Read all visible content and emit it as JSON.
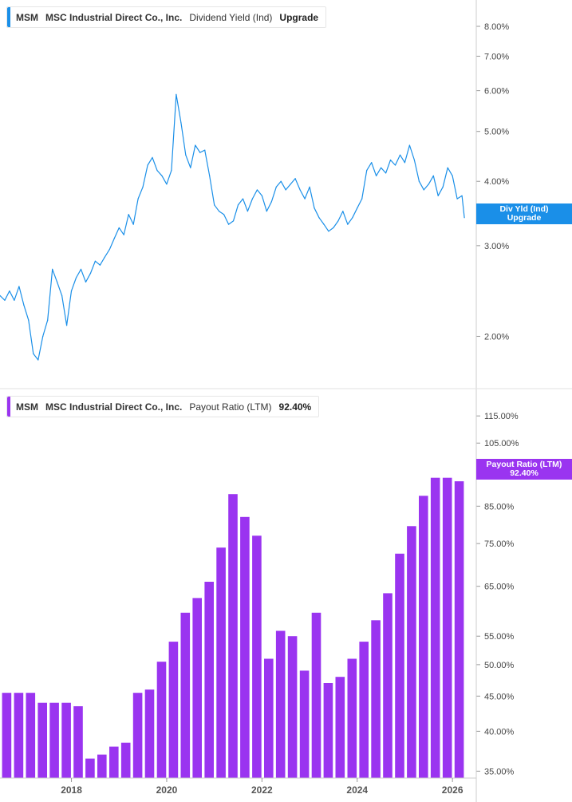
{
  "ticker": "MSM",
  "company": "MSC Industrial Direct Co., Inc.",
  "colors": {
    "yield": "#1a8fe8",
    "payout": "#9a34f0",
    "axis": "#cccccc",
    "gridline": "#e2e2e2"
  },
  "top_legend": {
    "ticker": "MSM",
    "company": "MSC Industrial Direct Co., Inc.",
    "metric": "Dividend Yield (Ind)",
    "value": "Upgrade"
  },
  "top_badge": {
    "line1": "Div Yld (Ind)",
    "line2": "Upgrade"
  },
  "bottom_legend": {
    "ticker": "MSM",
    "company": "MSC Industrial Direct Co., Inc.",
    "metric": "Payout Ratio (LTM)",
    "value": "92.40%"
  },
  "bottom_badge": {
    "line1": "Payout Ratio (LTM)",
    "line2": "92.40%"
  },
  "chart_data": [
    {
      "type": "line",
      "scale": "log",
      "series": [
        {
          "name": "Dividend Yield (Ind)",
          "x": [
            2016.5,
            2016.6,
            2016.7,
            2016.8,
            2016.9,
            2017.0,
            2017.1,
            2017.2,
            2017.3,
            2017.4,
            2017.5,
            2017.6,
            2017.7,
            2017.8,
            2017.9,
            2018.0,
            2018.1,
            2018.2,
            2018.3,
            2018.4,
            2018.5,
            2018.6,
            2018.7,
            2018.8,
            2018.9,
            2019.0,
            2019.1,
            2019.2,
            2019.3,
            2019.4,
            2019.5,
            2019.6,
            2019.7,
            2019.8,
            2019.9,
            2020.0,
            2020.1,
            2020.2,
            2020.3,
            2020.4,
            2020.5,
            2020.6,
            2020.7,
            2020.8,
            2020.9,
            2021.0,
            2021.1,
            2021.2,
            2021.3,
            2021.4,
            2021.5,
            2021.6,
            2021.7,
            2021.8,
            2021.9,
            2022.0,
            2022.1,
            2022.2,
            2022.3,
            2022.4,
            2022.5,
            2022.6,
            2022.7,
            2022.8,
            2022.9,
            2023.0,
            2023.1,
            2023.2,
            2023.3,
            2023.4,
            2023.5,
            2023.6,
            2023.7,
            2023.8,
            2023.9,
            2024.0,
            2024.1,
            2024.2,
            2024.3,
            2024.4,
            2024.5,
            2024.6,
            2024.7,
            2024.8,
            2024.9,
            2025.0,
            2025.1,
            2025.2,
            2025.3,
            2025.4,
            2025.5,
            2025.6,
            2025.7,
            2025.8,
            2025.9,
            2026.0,
            2026.1,
            2026.2,
            2026.25
          ],
          "y": [
            2.4,
            2.35,
            2.45,
            2.35,
            2.5,
            2.3,
            2.15,
            1.85,
            1.8,
            2.0,
            2.15,
            2.7,
            2.55,
            2.4,
            2.1,
            2.45,
            2.6,
            2.7,
            2.55,
            2.65,
            2.8,
            2.75,
            2.85,
            2.95,
            3.1,
            3.25,
            3.15,
            3.45,
            3.3,
            3.7,
            3.9,
            4.3,
            4.45,
            4.2,
            4.1,
            3.95,
            4.2,
            5.9,
            5.2,
            4.5,
            4.25,
            4.7,
            4.55,
            4.6,
            4.1,
            3.6,
            3.5,
            3.45,
            3.3,
            3.35,
            3.6,
            3.7,
            3.5,
            3.7,
            3.85,
            3.75,
            3.5,
            3.65,
            3.9,
            4.0,
            3.85,
            3.95,
            4.05,
            3.85,
            3.7,
            3.9,
            3.55,
            3.4,
            3.3,
            3.2,
            3.25,
            3.35,
            3.5,
            3.3,
            3.4,
            3.55,
            3.7,
            4.2,
            4.35,
            4.1,
            4.25,
            4.15,
            4.4,
            4.3,
            4.5,
            4.35,
            4.7,
            4.4,
            4.0,
            3.85,
            3.95,
            4.1,
            3.75,
            3.9,
            4.25,
            4.1,
            3.7,
            3.75,
            3.4
          ]
        }
      ],
      "y_ticks": [
        "2.00%",
        "3.00%",
        "4.00%",
        "5.00%",
        "6.00%",
        "7.00%",
        "8.00%"
      ],
      "y_tick_values": [
        2,
        3,
        4,
        5,
        6,
        7,
        8
      ],
      "ylim": [
        1.6,
        9.0
      ]
    },
    {
      "type": "bar",
      "scale": "log",
      "series": [
        {
          "name": "Payout Ratio (LTM)",
          "x": [
            2016.75,
            2017.0,
            2017.25,
            2017.5,
            2017.75,
            2018.0,
            2018.25,
            2018.5,
            2018.75,
            2019.0,
            2019.25,
            2019.5,
            2019.75,
            2020.0,
            2020.25,
            2020.5,
            2020.75,
            2021.0,
            2021.25,
            2021.5,
            2021.75,
            2022.0,
            2022.25,
            2022.5,
            2022.75,
            2023.0,
            2023.25,
            2023.5,
            2023.75,
            2024.0,
            2024.25,
            2024.5,
            2024.75,
            2025.0,
            2025.25,
            2025.5,
            2025.75,
            2026.0,
            2026.25
          ],
          "values": [
            45.5,
            45.5,
            45.5,
            44.0,
            44.0,
            44.0,
            43.5,
            36.5,
            37.0,
            38.0,
            38.5,
            45.5,
            46.0,
            50.5,
            54.0,
            59.5,
            62.5,
            66.0,
            74.0,
            88.5,
            82.0,
            77.0,
            51.0,
            56.0,
            55.0,
            49.0,
            59.5,
            47.0,
            48.0,
            51.0,
            54.0,
            58.0,
            63.5,
            72.5,
            79.5,
            88.0,
            93.5,
            93.5,
            92.4
          ]
        }
      ],
      "y_ticks": [
        "35.00%",
        "40.00%",
        "45.00%",
        "50.00%",
        "55.00%",
        "65.00%",
        "75.00%",
        "85.00%",
        "95.00%",
        "105.00%",
        "115.00%"
      ],
      "y_tick_values": [
        35,
        40,
        45,
        50,
        55,
        65,
        75,
        85,
        95,
        105,
        115
      ],
      "ylim": [
        34.2,
        125
      ]
    }
  ],
  "x_axis": {
    "labels": [
      "2018",
      "2020",
      "2022",
      "2024",
      "2026"
    ],
    "values": [
      2018,
      2020,
      2022,
      2024,
      2026
    ],
    "range": [
      2016.5,
      2026.5
    ]
  }
}
